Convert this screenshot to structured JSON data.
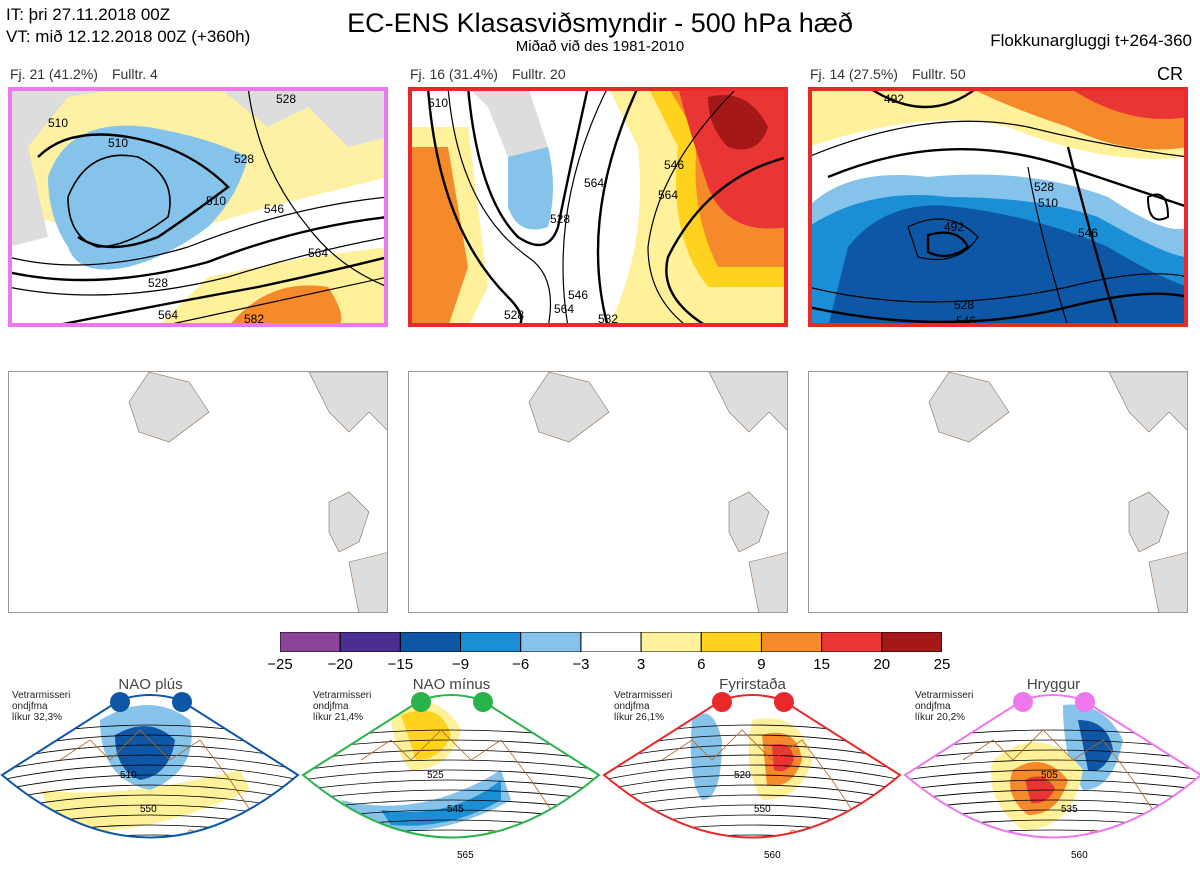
{
  "header": {
    "it_line": "IT: þri 27.11.2018 00Z",
    "vt_line": "VT: mið 12.12.2018 00Z  (+360h)",
    "title": "EC-ENS Klasasviðsmyndir - 500 hPa hæð",
    "subtitle": "Miðað við des 1981-2010",
    "window": "Flokkunargluggi t+264-360",
    "cr": "CR"
  },
  "panels": [
    {
      "label": "Fj. 21 (41.2%)",
      "member": "Fulltr. 4",
      "border": "#ee77ee",
      "contours": [
        "510",
        "510",
        "510",
        "528",
        "528",
        "546",
        "564",
        "564",
        "582",
        "528"
      ]
    },
    {
      "label": "Fj. 16 (31.4%)",
      "member": "Fulltr. 20",
      "border": "#e8292a",
      "contours": [
        "510",
        "528",
        "546",
        "546",
        "564",
        "564",
        "582",
        "564",
        "528"
      ]
    },
    {
      "label": "Fj. 14 (27.5%)",
      "member": "Fulltr. 50",
      "border": "#e8292a",
      "contours": [
        "492",
        "492",
        "528",
        "528",
        "546",
        "510",
        "546"
      ]
    }
  ],
  "colorbar": {
    "ticks": [
      "−25",
      "−20",
      "−15",
      "−9",
      "−6",
      "−3",
      "3",
      "6",
      "9",
      "15",
      "20",
      "25"
    ],
    "colors": [
      "#8b449a",
      "#4b2e91",
      "#0e57a6",
      "#1a8fd6",
      "#86c3ea",
      "#ffffff",
      "#fff09a",
      "#ffd21e",
      "#f48a2a",
      "#ea3535",
      "#a51818"
    ]
  },
  "regimes": [
    {
      "title": "NAO plús",
      "season": "Vetrarmisseri",
      "months": "ondjfma",
      "prob": "líkur 32,3%",
      "color": "#0e57a6",
      "contours": [
        "510",
        "550"
      ]
    },
    {
      "title": "NAO mínus",
      "season": "Vetrarmisseri",
      "months": "ondjfma",
      "prob": "líkur 21,4%",
      "color": "#2ab34a",
      "contours": [
        "525",
        "545",
        "565"
      ]
    },
    {
      "title": "Fyrirstaða",
      "season": "Vetrarmisseri",
      "months": "ondjfma",
      "prob": "líkur 26,1%",
      "color": "#e8292a",
      "contours": [
        "520",
        "550",
        "560"
      ]
    },
    {
      "title": "Hryggur",
      "season": "Vetrarmisseri",
      "months": "ondjfma",
      "prob": "líkur 20,2%",
      "color": "#ee77ee",
      "contours": [
        "505",
        "535",
        "560"
      ]
    }
  ]
}
